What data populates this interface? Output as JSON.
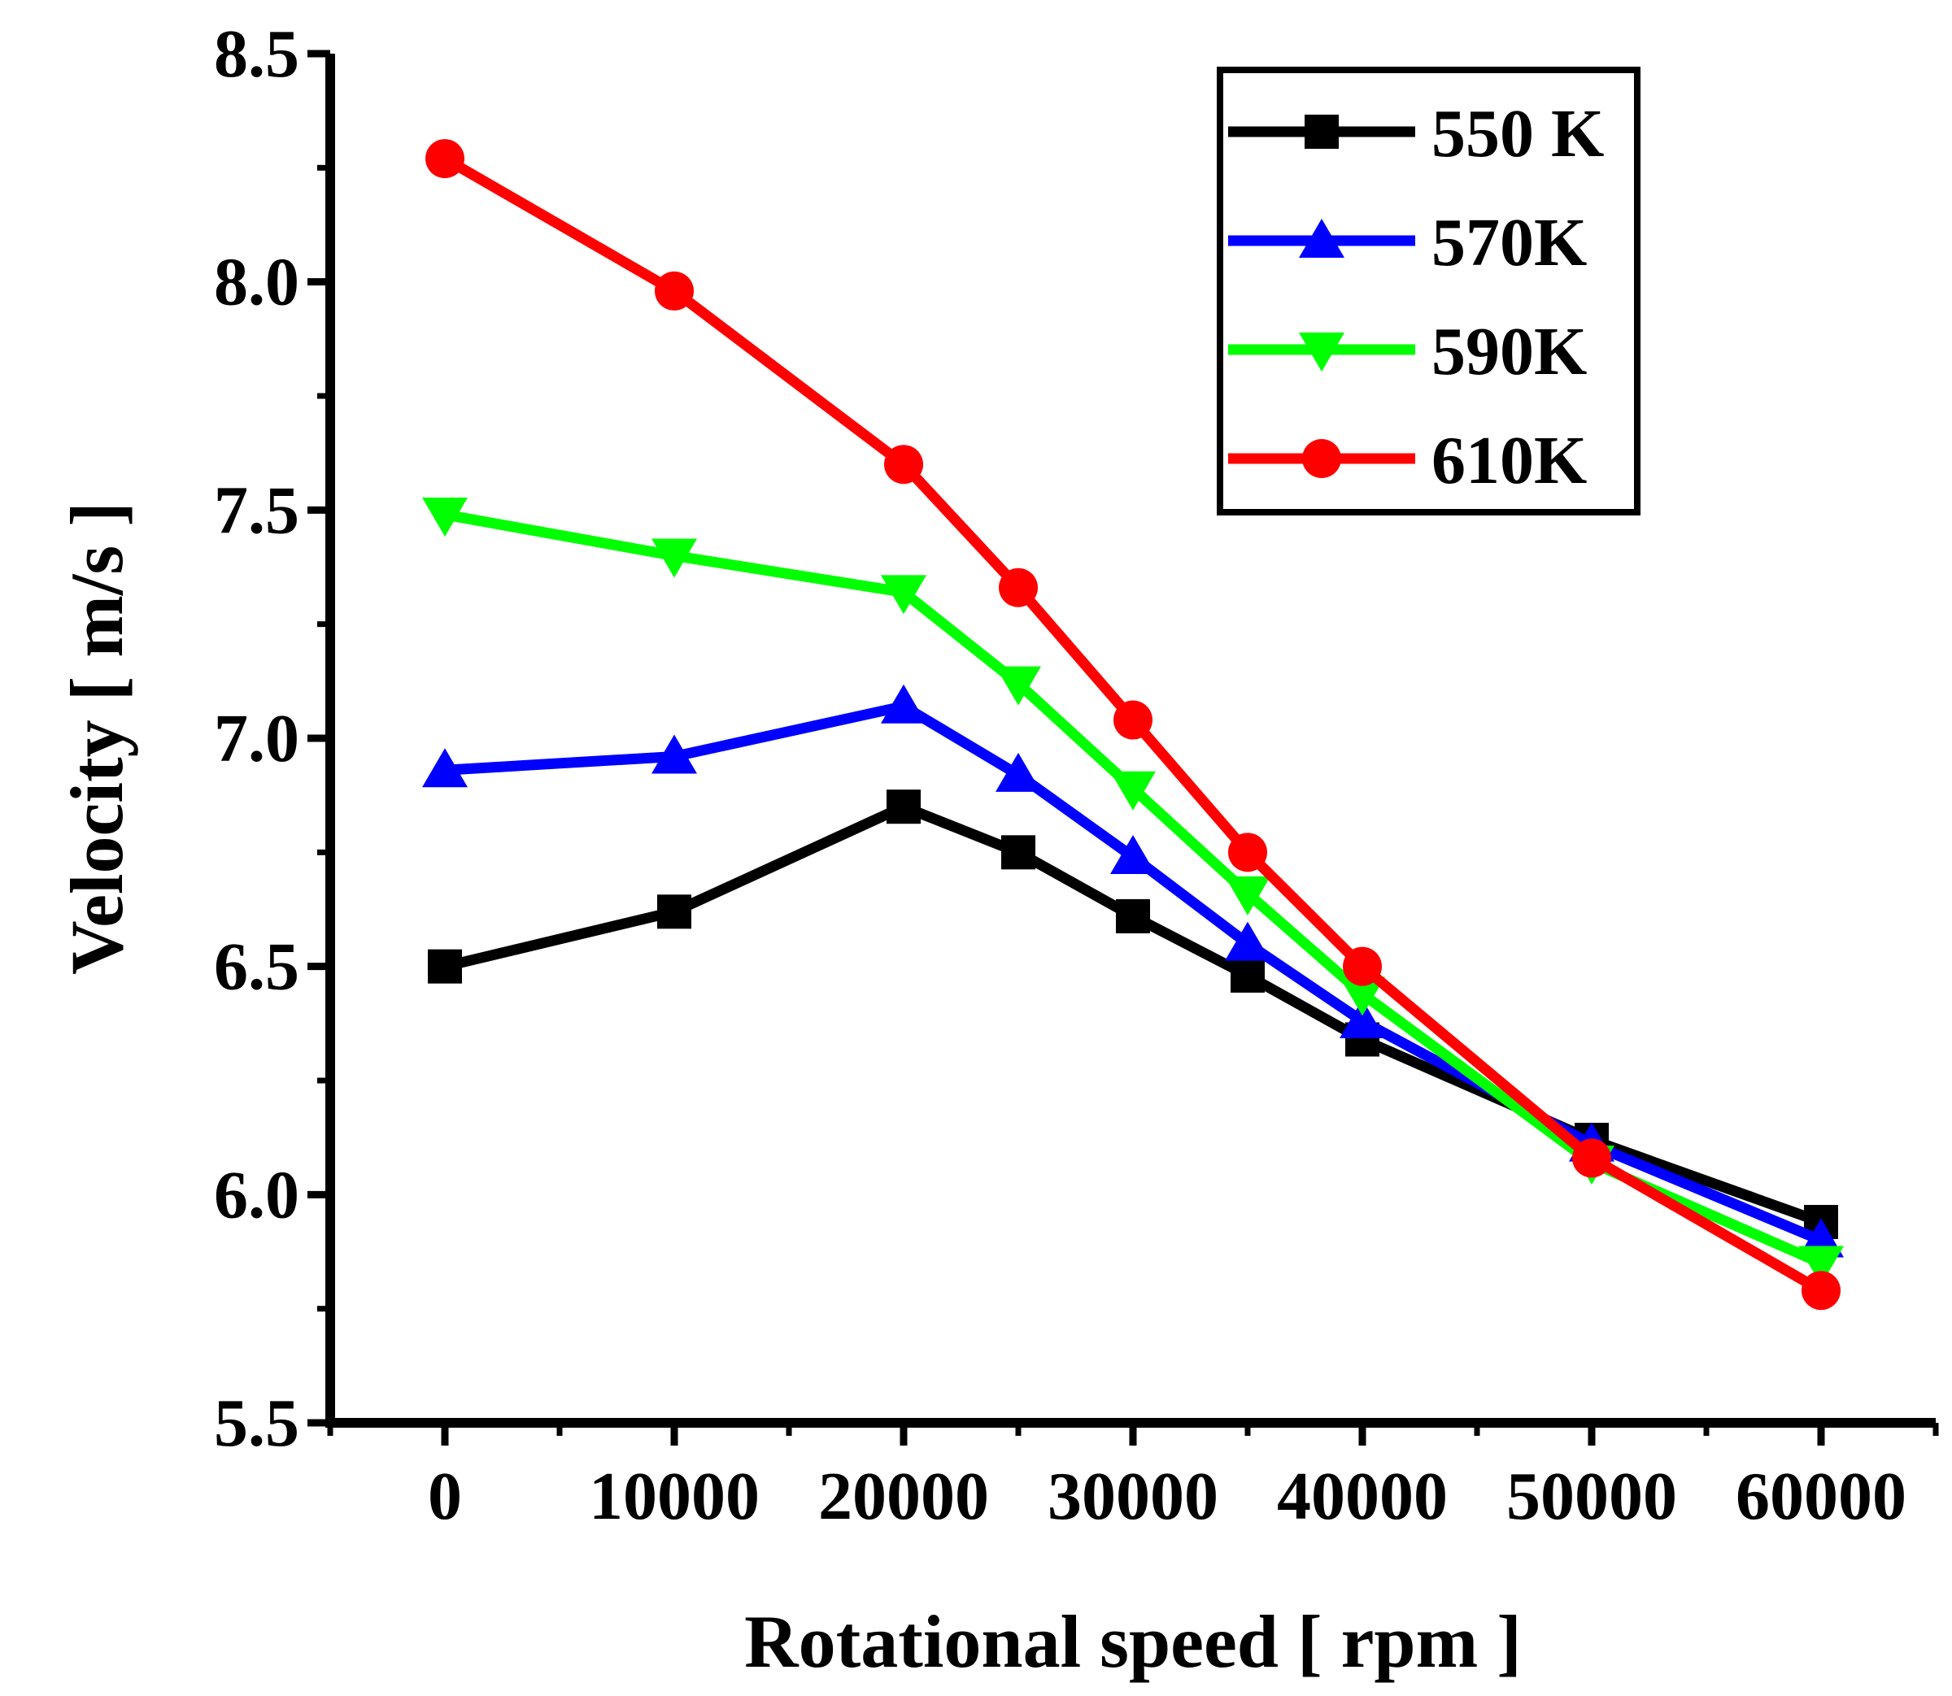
{
  "chart_data": {
    "type": "line",
    "title": "",
    "xlabel": "Rotational speed [ rpm ]",
    "ylabel": "Velocity [ m/s ]",
    "xlim": [
      -5000,
      65000
    ],
    "ylim": [
      5.5,
      8.5
    ],
    "xticks": [
      0,
      10000,
      20000,
      30000,
      40000,
      50000,
      60000
    ],
    "xtick_labels": [
      "0",
      "10000",
      "20000",
      "30000",
      "40000",
      "50000",
      "60000"
    ],
    "yticks": [
      5.5,
      6.0,
      6.5,
      7.0,
      7.5,
      8.0,
      8.5
    ],
    "ytick_labels": [
      "5.5",
      "6.0",
      "6.5",
      "7.0",
      "7.5",
      "8.0",
      "8.5"
    ],
    "legend_position": "top-right",
    "grid": false,
    "series": [
      {
        "name": "550 K",
        "color": "#000000",
        "marker": "square",
        "x": [
          0,
          10000,
          20000,
          25000,
          30000,
          35000,
          40000,
          50000,
          60000
        ],
        "values": [
          6.5,
          6.62,
          6.85,
          6.75,
          6.61,
          6.48,
          6.34,
          6.12,
          5.94
        ]
      },
      {
        "name": "570K",
        "color": "#0000ff",
        "marker": "triangle-up",
        "x": [
          0,
          10000,
          20000,
          25000,
          30000,
          35000,
          40000,
          50000,
          60000
        ],
        "values": [
          6.93,
          6.96,
          7.07,
          6.92,
          6.74,
          6.55,
          6.38,
          6.11,
          5.9
        ]
      },
      {
        "name": "590K",
        "color": "#00ff00",
        "marker": "triangle-down",
        "x": [
          0,
          10000,
          20000,
          25000,
          30000,
          35000,
          40000,
          50000,
          60000
        ],
        "values": [
          7.49,
          7.4,
          7.32,
          7.12,
          6.89,
          6.66,
          6.44,
          6.07,
          5.85
        ]
      },
      {
        "name": "610K",
        "color": "#ff0000",
        "marker": "circle",
        "x": [
          0,
          10000,
          20000,
          25000,
          30000,
          35000,
          40000,
          50000,
          60000
        ],
        "values": [
          8.27,
          7.98,
          7.6,
          7.33,
          7.04,
          6.75,
          6.5,
          6.08,
          5.79
        ]
      }
    ]
  }
}
